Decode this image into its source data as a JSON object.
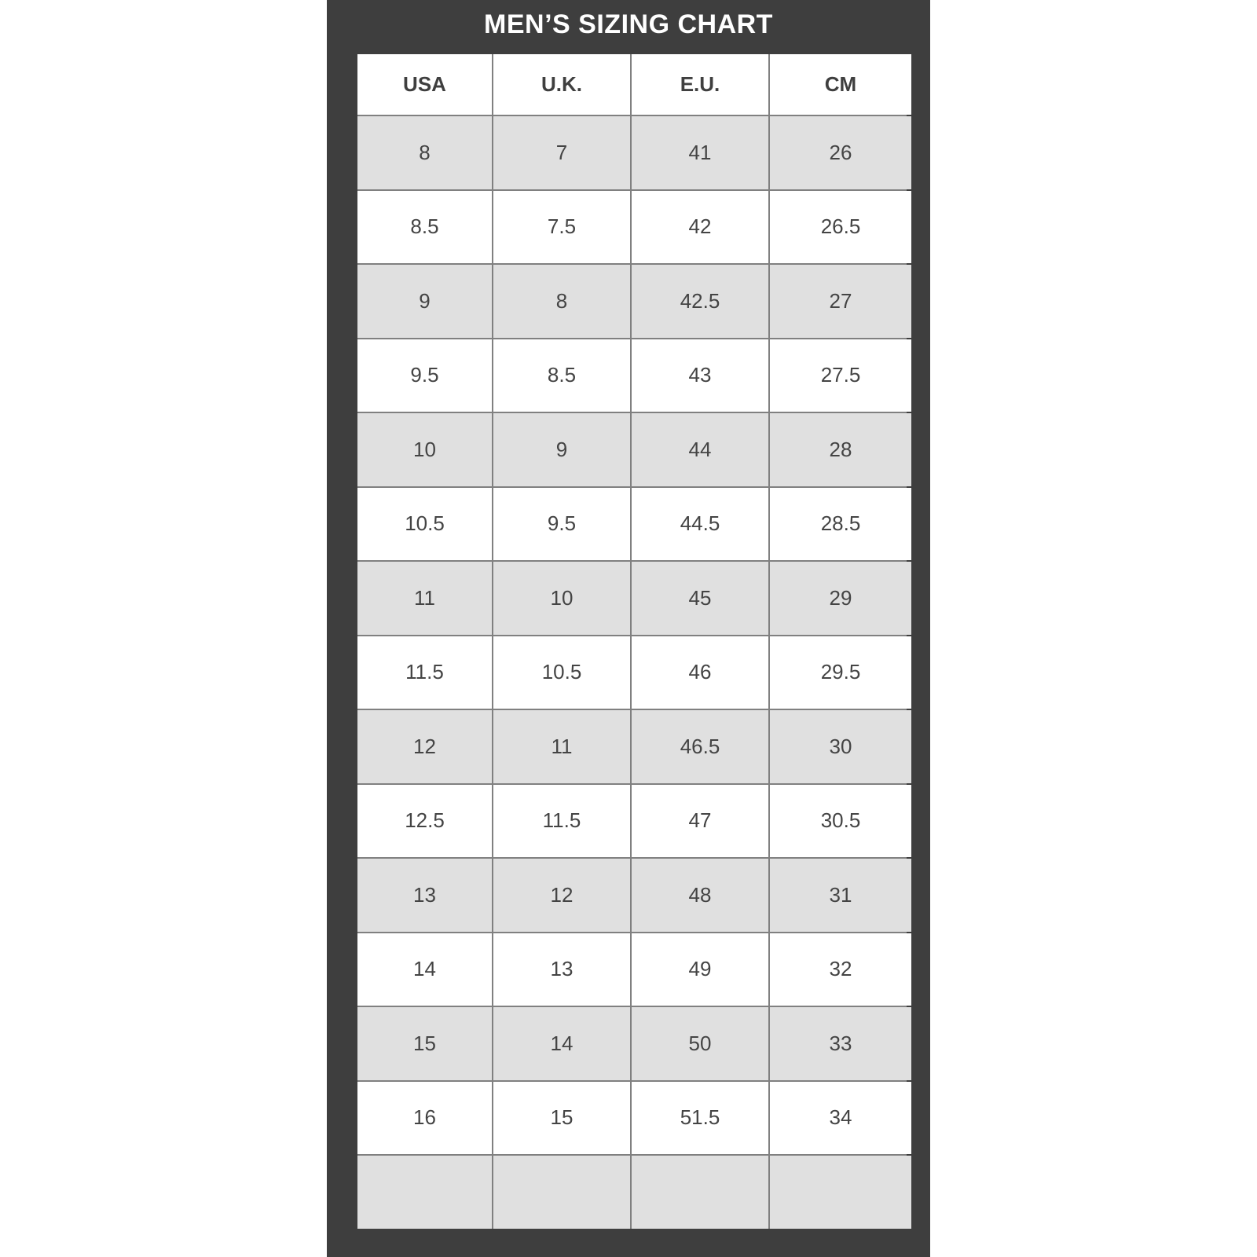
{
  "title": "MEN’S SIZING CHART",
  "headers": [
    "USA",
    "U.K.",
    "E.U.",
    "CM"
  ],
  "rows": [
    [
      "8",
      "7",
      "41",
      "26"
    ],
    [
      "8.5",
      "7.5",
      "42",
      "26.5"
    ],
    [
      "9",
      "8",
      "42.5",
      "27"
    ],
    [
      "9.5",
      "8.5",
      "43",
      "27.5"
    ],
    [
      "10",
      "9",
      "44",
      "28"
    ],
    [
      "10.5",
      "9.5",
      "44.5",
      "28.5"
    ],
    [
      "11",
      "10",
      "45",
      "29"
    ],
    [
      "11.5",
      "10.5",
      "46",
      "29.5"
    ],
    [
      "12",
      "11",
      "46.5",
      "30"
    ],
    [
      "12.5",
      "11.5",
      "47",
      "30.5"
    ],
    [
      "13",
      "12",
      "48",
      "31"
    ],
    [
      "14",
      "13",
      "49",
      "32"
    ],
    [
      "15",
      "14",
      "50",
      "33"
    ],
    [
      "16",
      "15",
      "51.5",
      "34"
    ],
    [
      "",
      "",
      "",
      ""
    ]
  ],
  "colors": {
    "panel": "#3e3e3e",
    "row_shaded": "#e0e0e0",
    "row_plain": "#ffffff",
    "grid": "#808080"
  }
}
